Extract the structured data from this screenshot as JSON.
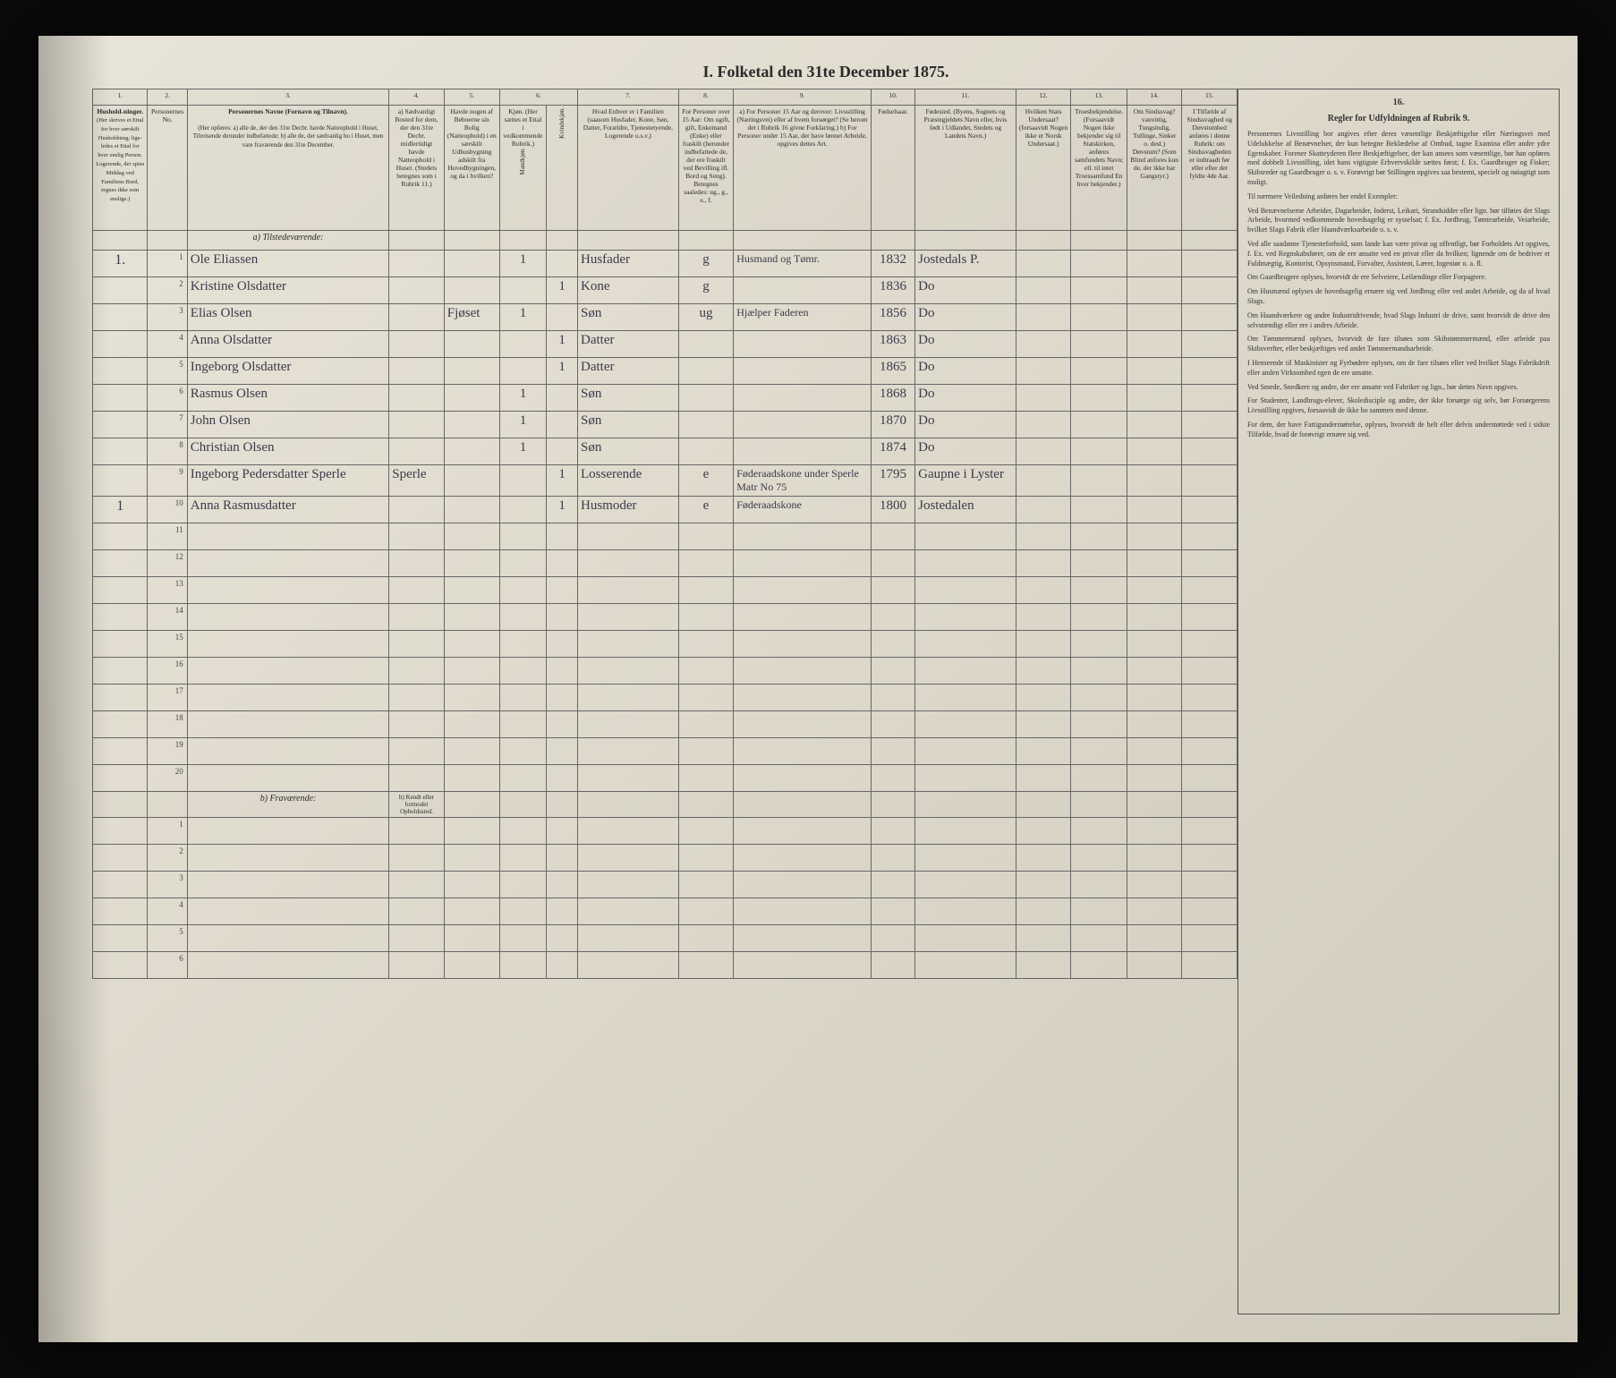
{
  "page": {
    "title": "I.  Folketal den 31te December 1875.",
    "background_color": "#e8e4d8",
    "border_color": "#666666",
    "text_color": "#2a2a2a",
    "script_color": "#3a3a4a"
  },
  "column_numbers": [
    "1.",
    "2.",
    "3.",
    "4.",
    "5.",
    "6.",
    "7.",
    "8.",
    "9.",
    "10.",
    "11.",
    "12.",
    "13.",
    "14.",
    "15.",
    "16."
  ],
  "headers": {
    "c1": "Hushold-ninger.",
    "c1_sub": "(Her skrives et Ettal for hver særskilt Husholdning; lige-ledes et Ettal for hver enslig Person. Logerende, der spise Middag ved Familiens Bord, regnes ikke som enslige.)",
    "c2": "Personernes No.",
    "c3": "Personernes Navne (Fornavn og Tilnavn).",
    "c3_sub": "(Her opføres: a) alle de, der den 31te Decbr. havde Natteophold i Huset, Tilreisende derunder indbefattede; b) alle de, der sædvanlig bo i Huset, men vare fraværende den 31te December.",
    "c4": "a) Sædvanligt Bosted for dem, der den 31te Decbr. midlertidigt havde Natteophold i Huset. (Stedets betegnes som i Rubrik 11.)",
    "c4_b": "b) Kendt eller formodet Opholdssted.",
    "c5": "Havde nogen af Beboerne sin Bolig (Natteophold) i en særskilt Udhusbygning adskilt fra Hovedbygningen, og da i hvilken?",
    "c6": "Kjøn. (Her sættes et Ettal i vedkommende Rubrik.)",
    "c6a": "Mandkjøn.",
    "c6b": "Kvindekjøn.",
    "c7": "Hvad Enhver er i Familien (saasom Husfader, Kone, Søn, Datter, Forældre, Tjenestetyende, Logerende o.s.v.)",
    "c8": "For Personer over 15 Aar: Om ugift, gift, Enkemand (Enke) eller fraskilt (herunder indbefattede de, der ere fraskilt ved Bevilling ifl. Bord og Seng). Betegnes saaledes: ug., g., e., f.",
    "c9": "a) For Personer 15 Aar og derover: Livsstilling (Næringsvei) eller af hvem forsørget? (Se herom det i Rubrik 16 givne Forklaring.) b) For Personer under 15 Aar, der have lønnet Arbeide, opgives dettes Art.",
    "c10": "Fødselsaar.",
    "c11": "Fødested. (Byens, Sognets og Præstegjeldets Navn eller, hvis født i Udlandet, Stedets og Landets Navn.)",
    "c12": "Hvilken Stats Undersaat? (forsaavidt Nogen ikke er Norsk Undersaat.)",
    "c13": "Troesbekjendelse. (Forsaavidt Nogen ikke bekjender sig til Statskirken, anføres samfundets Navn; ell. til intet Troessamfund En hver bekjender.)",
    "c14": "Om Sindssvag? vanvittig, Tungsindig, Tullinge, Sinker o. desl.) Døvstum? (Som Blind anfores kun de, der ikke har Gangstyr.)",
    "c15": "I Tilfælde af Sindssvaghed og Døvstumhed anføres i denne Rubrik: om Sindssvagheden er indtraadt før eller efter det fyldte 4de Aar.",
    "c16_title": "Regler for Udfyldningen af Rubrik 9."
  },
  "sections": {
    "present": "a) Tilstedeværende:",
    "absent": "b) Fraværende:"
  },
  "rows": [
    {
      "hh": "1.",
      "n": "1",
      "name": "Ole Eliassen",
      "c4": "",
      "c5": "",
      "m": "1",
      "k": "",
      "rel": "Husfader",
      "ms": "g",
      "occ": "Husmand og Tømr.",
      "year": "1832",
      "place": "Jostedals P."
    },
    {
      "hh": "",
      "n": "2",
      "name": "Kristine Olsdatter",
      "c4": "",
      "c5": "",
      "m": "",
      "k": "1",
      "rel": "Kone",
      "ms": "g",
      "occ": "",
      "year": "1836",
      "place": "Do"
    },
    {
      "hh": "",
      "n": "3",
      "name": "Elias Olsen",
      "c4": "",
      "c5": "Fjøset",
      "m": "1",
      "k": "",
      "rel": "Søn",
      "ms": "ug",
      "occ": "Hjælper Faderen",
      "year": "1856",
      "place": "Do"
    },
    {
      "hh": "",
      "n": "4",
      "name": "Anna Olsdatter",
      "c4": "",
      "c5": "",
      "m": "",
      "k": "1",
      "rel": "Datter",
      "ms": "",
      "occ": "",
      "year": "1863",
      "place": "Do"
    },
    {
      "hh": "",
      "n": "5",
      "name": "Ingeborg Olsdatter",
      "c4": "",
      "c5": "",
      "m": "",
      "k": "1",
      "rel": "Datter",
      "ms": "",
      "occ": "",
      "year": "1865",
      "place": "Do"
    },
    {
      "hh": "",
      "n": "6",
      "name": "Rasmus Olsen",
      "c4": "",
      "c5": "",
      "m": "1",
      "k": "",
      "rel": "Søn",
      "ms": "",
      "occ": "",
      "year": "1868",
      "place": "Do"
    },
    {
      "hh": "",
      "n": "7",
      "name": "John Olsen",
      "c4": "",
      "c5": "",
      "m": "1",
      "k": "",
      "rel": "Søn",
      "ms": "",
      "occ": "",
      "year": "1870",
      "place": "Do"
    },
    {
      "hh": "",
      "n": "8",
      "name": "Christian Olsen",
      "c4": "",
      "c5": "",
      "m": "1",
      "k": "",
      "rel": "Søn",
      "ms": "",
      "occ": "",
      "year": "1874",
      "place": "Do"
    },
    {
      "hh": "",
      "n": "9",
      "name": "Ingeborg Pedersdatter Sperle",
      "c4": "Sperle",
      "c5": "",
      "m": "",
      "k": "1",
      "rel": "Losserende",
      "ms": "e",
      "occ": "Føderaadskone under Sperle Matr No 75",
      "year": "1795",
      "place": "Gaupne i Lyster"
    },
    {
      "hh": "1",
      "n": "10",
      "name": "Anna Rasmusdatter",
      "c4": "",
      "c5": "",
      "m": "",
      "k": "1",
      "rel": "Husmoder",
      "ms": "e",
      "occ": "Føderaadskone",
      "year": "1800",
      "place": "Jostedalen"
    }
  ],
  "empty_present_rows": [
    "11",
    "12",
    "13",
    "14",
    "15",
    "16",
    "17",
    "18",
    "19",
    "20"
  ],
  "empty_absent_rows": [
    "1",
    "2",
    "3",
    "4",
    "5",
    "6"
  ],
  "rules_text": {
    "title": "Regler for Udfyldningen af Rubrik 9.",
    "p1": "Personernes Livsstilling bor angives efter deres væsentlige Beskjæftigelse eller Næringsvei med Udelukkelse af Benævnelser, der kun betegne Beklædelse af Ombud, tagne Examina eller andre ydre Egenskaber. Forener Skatteyderen flere Beskjæftigelser, der kan ansees som væsentlige, bør han opføres med dobbelt Livsstilling, idet hans vigtigste Erhvervskilde sættes først; f. Ex. Gaardbruger og Fisker; Skibsreder og Gaardbruger o. s. v. Forøvrigt bør Stillingen opgives saa bestemt, specielt og nøiagtigt som muligt.",
    "p2": "Til nærmere Veiledning anføres her endel Exempler:",
    "p3": "Ved Benævnelserne Arbeider, Dagarbeider, Inderst, Leikari, Strandsidder eller lign. bør tilføies det Slags Arbeide, hvormed vedkommende hovedsagelig er sysselsat; f. Ex. Jordbrug, Tømtearbeide, Veiarbeide, hvilket Slags Fabrik eller Haandværksarbeide o. s. v.",
    "p4": "Ved alle saadanne Tjenesteforhold, som lande kan være privat og offentligt, bør Forholdets Art opgives, f. Ex. ved Regnskabsfører, om de ere ansatte ved en privat eller da hvilken; lignende om de bedriver et Fuldmægtig, Kontorist, Opsynsmand, Forvalter, Assistent, Lærer, Ingeniør o. a. fl.",
    "p5": "Om Gaardbrugere oplyses, hvorvidt de ere Selveiere, Leilændinge eller Forpagtere.",
    "p6": "Om Husmænd oplyses de hovedsagelig ernære sig ved Jordbrug eller ved andet Arbeide, og da af hvad Slags.",
    "p7": "Om Haandværkere og andre Industridrivende, hvad Slags Industri de drive, samt hvorvidt de drive den selvstændigt eller ere i andres Arbeide.",
    "p8": "Om Tømmermænd oplyses, hvorvidt de fare tilsøes som Skibstømmermænd, eller arbeide paa Skibsverfter, eller beskjæftiges ved andet Tømmermandsarbeide.",
    "p9": "I Henseende til Maskinister og Fyrbødere oplyses, om de fare tilsøes eller ved hvilket Slags Fabrikdrift eller anden Virksomhed egen de ere ansatte.",
    "p10": "Ved Smede, Snedkere og andre, der ere ansatte ved Fabriker og lign., bør dettes Navn opgives.",
    "p11": "For Studenter, Landbrugs-elever, Skoledisciple og andre, der ikke forsørge sig selv, bør Forsørgerens Livsstilling opgives, forsaavidt de ikke bo sammen med denne.",
    "p12": "For dem, der have Fattigunderstøttelse, oplyses, hvorvidt de helt eller delvis understøttede ved i sidste Tilfælde, hvad de forøvrigt ernære sig ved."
  }
}
